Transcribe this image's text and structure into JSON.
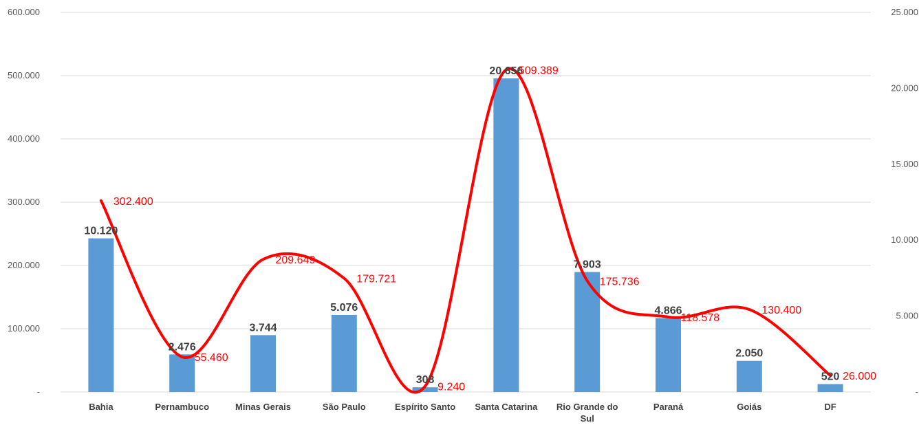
{
  "chart_data": {
    "type": "bar",
    "categories": [
      "Bahia",
      "Pernambuco",
      "Minas Gerais",
      "São Paulo",
      "Espírito Santo",
      "Santa Catarina",
      "Rio Grande do Sul",
      "Paraná",
      "Goiás",
      "DF"
    ],
    "category_lines": [
      [
        "Bahia"
      ],
      [
        "Pernambuco"
      ],
      [
        "Minas Gerais"
      ],
      [
        "São Paulo"
      ],
      [
        "Espírito Santo"
      ],
      [
        "Santa Catarina"
      ],
      [
        "Rio Grande do",
        "Sul"
      ],
      [
        "Paraná"
      ],
      [
        "Goiás"
      ],
      [
        "DF"
      ]
    ],
    "series": [
      {
        "type": "bar",
        "axis": "right",
        "color": "#5b9bd5",
        "values": [
          10120,
          2476,
          3744,
          5076,
          308,
          20656,
          7903,
          4866,
          2050,
          520
        ],
        "labels": [
          "10.120",
          "2.476",
          "3.744",
          "5.076",
          "308",
          "20.656",
          "7.903",
          "4.866",
          "2.050",
          "520"
        ]
      },
      {
        "type": "line",
        "axis": "left",
        "color": "#ff0000",
        "smooth": true,
        "values": [
          302400,
          55460,
          209649,
          179721,
          9240,
          509389,
          175736,
          118578,
          130400,
          26000
        ],
        "labels": [
          "302.400",
          "55.460",
          "209.649",
          "179.721",
          "9.240",
          "509.389",
          "175.736",
          "118.578",
          "130.400",
          "26.000"
        ]
      }
    ],
    "y_left": {
      "ylim": [
        0,
        600000
      ],
      "ticks": [
        0,
        100000,
        200000,
        300000,
        400000,
        500000,
        600000
      ],
      "tick_labels": [
        "-",
        "100.000",
        "200.000",
        "300.000",
        "400.000",
        "500.000",
        "600.000"
      ]
    },
    "y_right": {
      "ylim": [
        0,
        25000
      ],
      "ticks": [
        0,
        5000,
        10000,
        15000,
        20000,
        25000
      ],
      "tick_labels": [
        "-",
        "5.000",
        "10.000",
        "15.000",
        "20.000",
        "25.000"
      ]
    },
    "grid": true,
    "title": "",
    "legend": "none"
  }
}
